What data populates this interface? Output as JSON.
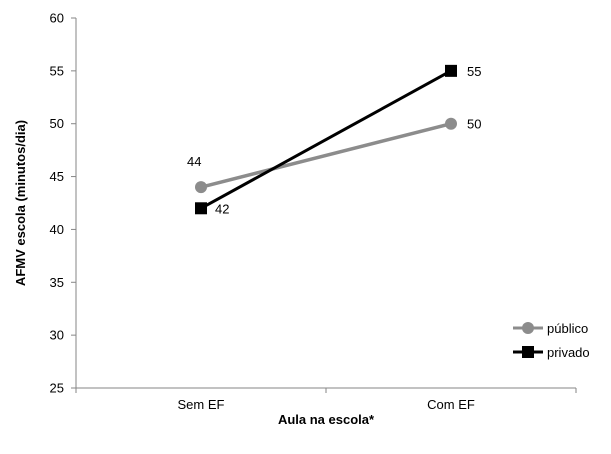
{
  "chart_data": {
    "type": "line",
    "categories": [
      "Sem EF",
      "Com EF"
    ],
    "series": [
      {
        "name": "público",
        "values": [
          44,
          50
        ],
        "color": "#8c8c8c",
        "marker": "circle",
        "data_labels": [
          "44",
          "50"
        ]
      },
      {
        "name": "privado",
        "values": [
          42,
          55
        ],
        "color": "#000000",
        "marker": "square",
        "data_labels": [
          "42",
          "55"
        ]
      }
    ],
    "xlabel": "Aula na escola*",
    "ylabel": "AFMV escola (minutos/dia)",
    "ylim": [
      25,
      60
    ],
    "yticks": [
      25,
      30,
      35,
      40,
      45,
      50,
      55,
      60
    ],
    "grid": false,
    "legend_position": "right"
  }
}
